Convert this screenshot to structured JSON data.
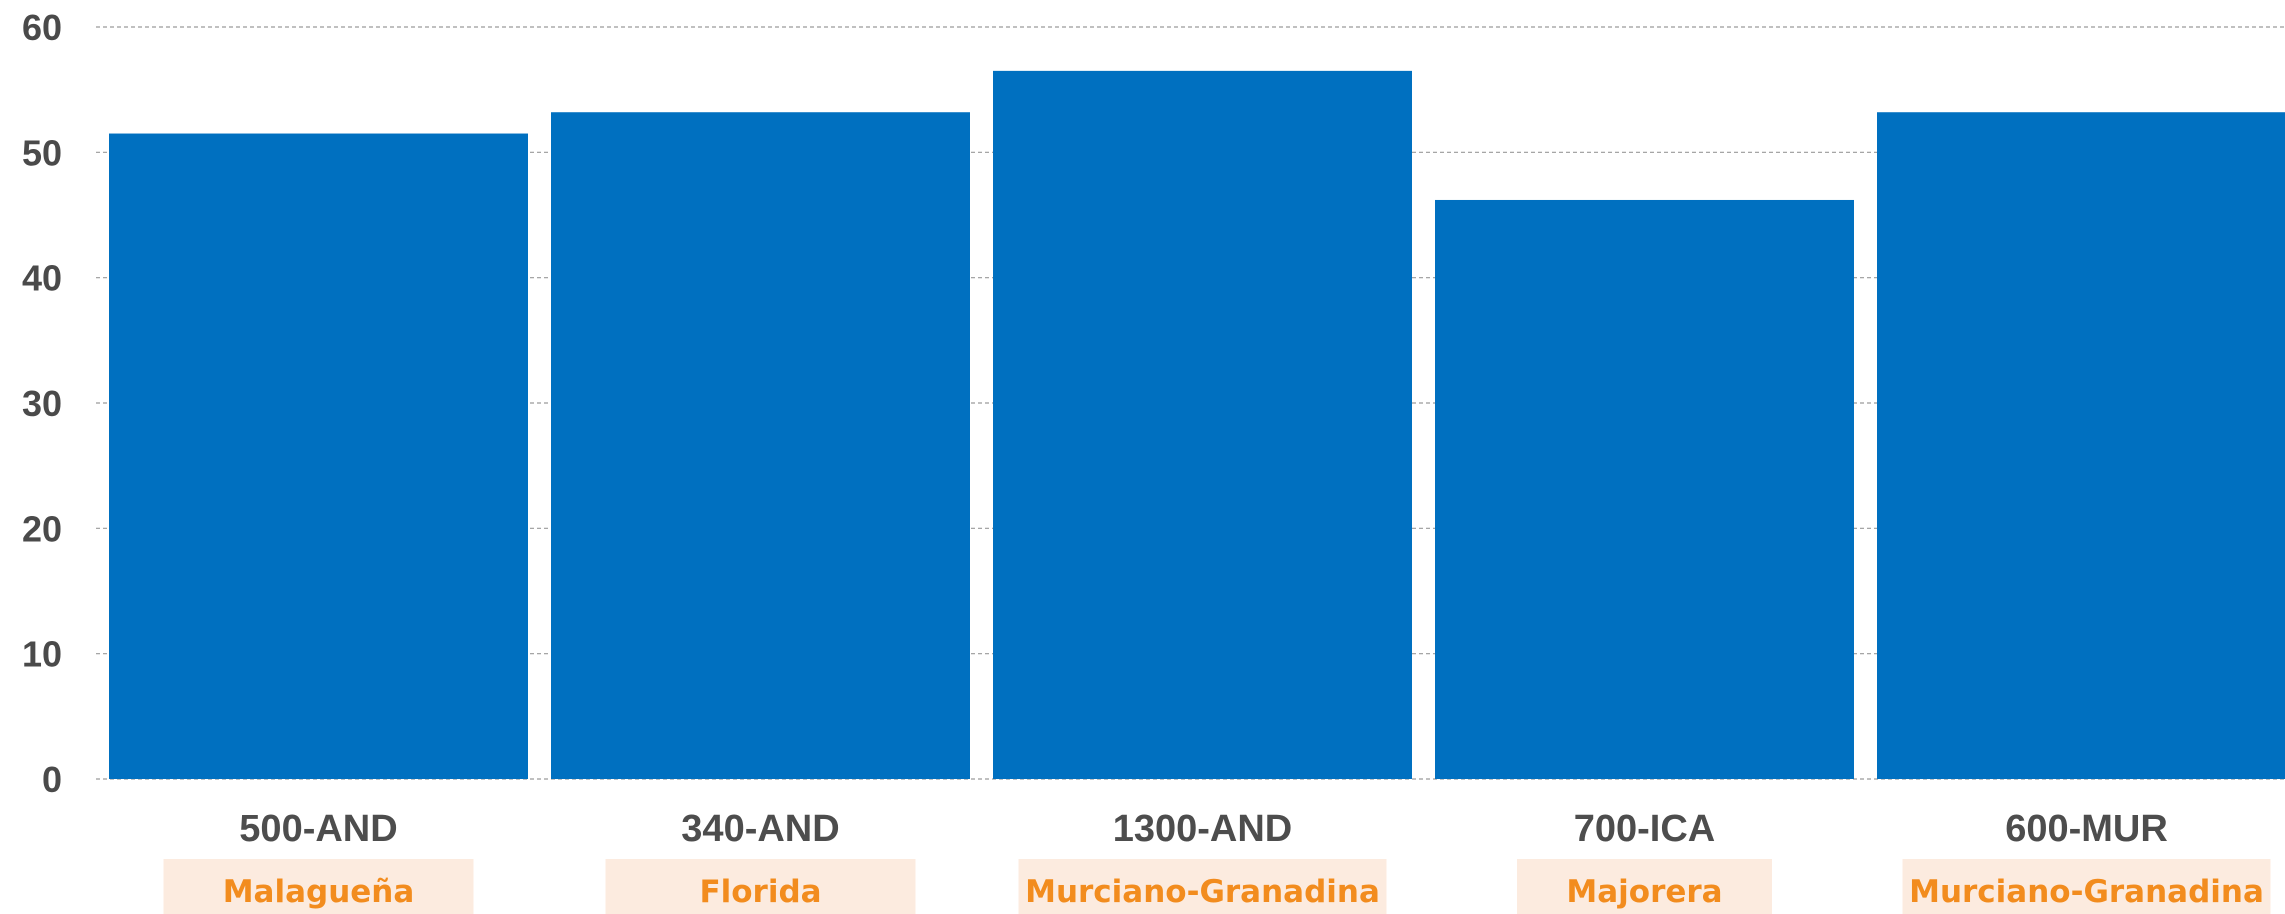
{
  "chart_data": {
    "type": "bar",
    "categories": [
      "500-AND",
      "340-AND",
      "1300-AND",
      "700-ICA",
      "600-MUR"
    ],
    "sublabels": [
      "Malagueña",
      "Florida",
      "Murciano-Granadina",
      "Majorera",
      "Murciano-Granadina"
    ],
    "values": [
      51.5,
      53.2,
      56.5,
      46.2,
      53.2
    ],
    "ylim": [
      0,
      60
    ],
    "yticks": [
      0,
      10,
      20,
      30,
      40,
      50,
      60
    ],
    "grid": true,
    "title": "",
    "xlabel": "",
    "ylabel": ""
  },
  "colors": {
    "bar": "#0070c0",
    "grid": "#9a9a9a",
    "tick_text": "#4a4a4a",
    "category_text": "#4d4d4d",
    "sublabel_text": "#f28c1e",
    "sublabel_bg": "#fcebdf"
  }
}
